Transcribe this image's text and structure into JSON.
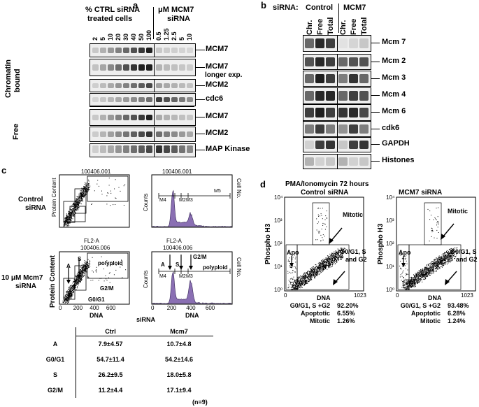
{
  "panel_a": {
    "letter": "a",
    "header_ctrl": "% CTRL siRNA",
    "header_ctrl2": "treated cells",
    "header_mcm7": "μM MCM7",
    "header_mcm72": "siRNA",
    "lanes_ctrl": [
      "2",
      "5",
      "10",
      "20",
      "30",
      "40",
      "50",
      "100"
    ],
    "lanes_mcm7": [
      "0.5",
      "1.25",
      "2.5",
      "5",
      "10"
    ],
    "section_bound_1": "Chromatin",
    "section_bound_2": "bound",
    "section_free": "Free",
    "rows": [
      "MCM7",
      "MCM7",
      "MCM2",
      "cdc6",
      "MCM7",
      "MCM2",
      "MAP Kinase"
    ],
    "row2_extra": "longer exp."
  },
  "panel_b": {
    "letter": "b",
    "sirna_label": "siRNA:",
    "control": "Control",
    "mcm7": "MCM7",
    "lanes": [
      "Chr.",
      "Free",
      "Total",
      "Chr.",
      "Free",
      "Total"
    ],
    "rows": [
      "Mcm 7",
      "Mcm 2",
      "Mcm 3",
      "Mcm 4",
      "Mcm 6",
      "cdk6",
      "GAPDH",
      "Histones"
    ]
  },
  "panel_c": {
    "letter": "c",
    "row1_label_1": "Control",
    "row1_label_2": "siRNA",
    "row2_label_1": "10 μM Mcm7",
    "row2_label_2": "siRNA",
    "file1": "100406.001",
    "file2": "100406.006",
    "fl2a": "FL2-A",
    "protein_content": "Protein Content",
    "counts": "Counts",
    "cell_no": "Cell No.",
    "dna": "DNA",
    "sirna": "siRNA",
    "m1": "M4",
    "m2": "M2",
    "m3": "M3",
    "m5": "M5",
    "gate_a": "A",
    "gate_s": "S",
    "polyploid": "polyploid",
    "g2m": "G2/M",
    "g0g1": "G0/G1",
    "ticks": [
      "0",
      "200",
      "400",
      "600"
    ],
    "yticks": [
      "0",
      "200",
      "400",
      "600"
    ],
    "hist_yticks": [
      "0",
      "80",
      "160",
      "240",
      "320"
    ],
    "table": {
      "col_ctrl": "Ctrl",
      "col_mcm7": "Mcm7",
      "rows": [
        {
          "label": "A",
          "ctrl": "7.9±4.57",
          "mcm7": "10.7±4.8"
        },
        {
          "label": "G0/G1",
          "ctrl": "54.7±11.4",
          "mcm7": "54.2±14.6"
        },
        {
          "label": "S",
          "ctrl": "26.2±9.5",
          "mcm7": "18.0±5.8"
        },
        {
          "label": "G2/M",
          "ctrl": "11.2±4.4",
          "mcm7": "17.1±9.4"
        }
      ],
      "n": "(n=9)"
    }
  },
  "panel_d": {
    "letter": "d",
    "title1": "PMA/Ionomycin 72 hours",
    "title_left": "Control siRNA",
    "title_right": "MCM7 siRNA",
    "ylabel": "Phospho H3",
    "xlabel": "DNA",
    "x0": "0",
    "x1": "1023",
    "yticks": [
      "10⁴",
      "10³",
      "10²",
      "10¹",
      "10⁰"
    ],
    "mitotic": "Mitotic",
    "apo": "Apo",
    "g_label_1": "G0/G1, S",
    "g_label_2": "and G2",
    "stats_left": [
      {
        "label": "G0/G1, S +G2",
        "value": "92.20%"
      },
      {
        "label": "Apoptotic",
        "value": "6.55%"
      },
      {
        "label": "Mitotic",
        "value": "1.26%"
      }
    ],
    "stats_right": [
      {
        "label": "G0/G1, S +G2",
        "value": "93.48%"
      },
      {
        "label": "Apoptotic",
        "value": "6.28%"
      },
      {
        "label": "Mitotic",
        "value": "1.24%"
      }
    ]
  }
}
